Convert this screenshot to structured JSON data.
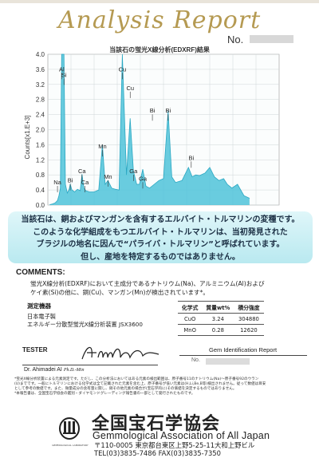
{
  "header": {
    "title": "Analysis Report",
    "no_label": "No."
  },
  "chart_data": {
    "type": "line",
    "title": "当該石の蛍光X線分析(EDXRF)結果",
    "ylabel": "Counts[x1.E+3]",
    "ylim": [
      0,
      4.0
    ],
    "xlim": [
      0,
      25
    ],
    "yticks": [
      "0.0",
      "0.4",
      "0.8",
      "1.2",
      "1.6",
      "2.0",
      "2.4",
      "2.8",
      "3.2",
      "3.6",
      "4.0"
    ],
    "grid": true,
    "fill_color": "#4fc3d9",
    "line_color": "#2aa7c2",
    "spectrum": [
      [
        0.2,
        0.01
      ],
      [
        0.5,
        0.03
      ],
      [
        0.8,
        0.06
      ],
      [
        1.04,
        0.12
      ],
      [
        1.2,
        0.25
      ],
      [
        1.35,
        0.45
      ],
      [
        1.49,
        4.0
      ],
      [
        1.62,
        4.0
      ],
      [
        1.74,
        4.0
      ],
      [
        1.9,
        0.55
      ],
      [
        2.1,
        0.32
      ],
      [
        2.3,
        0.42
      ],
      [
        2.42,
        0.55
      ],
      [
        2.6,
        0.4
      ],
      [
        2.9,
        0.35
      ],
      [
        3.2,
        0.42
      ],
      [
        3.5,
        0.38
      ],
      [
        3.69,
        0.82
      ],
      [
        3.9,
        0.45
      ],
      [
        4.1,
        0.38
      ],
      [
        4.5,
        0.35
      ],
      [
        5.0,
        0.35
      ],
      [
        5.5,
        0.4
      ],
      [
        5.9,
        1.6
      ],
      [
        6.2,
        0.55
      ],
      [
        6.5,
        0.65
      ],
      [
        6.9,
        0.45
      ],
      [
        7.3,
        0.42
      ],
      [
        7.7,
        0.4
      ],
      [
        8.05,
        4.0
      ],
      [
        8.5,
        0.8
      ],
      [
        8.9,
        2.3
      ],
      [
        9.25,
        0.9
      ],
      [
        9.6,
        0.55
      ],
      [
        9.9,
        0.55
      ],
      [
        10.26,
        0.95
      ],
      [
        10.6,
        0.5
      ],
      [
        11.0,
        0.45
      ],
      [
        11.5,
        0.55
      ],
      [
        12.0,
        0.65
      ],
      [
        12.5,
        0.7
      ],
      [
        13.0,
        2.5
      ],
      [
        13.4,
        0.75
      ],
      [
        13.8,
        0.6
      ],
      [
        14.5,
        0.65
      ],
      [
        15.2,
        1.0
      ],
      [
        15.6,
        0.75
      ],
      [
        16.0,
        0.8
      ],
      [
        16.4,
        0.78
      ],
      [
        17.0,
        0.85
      ],
      [
        17.5,
        1.0
      ],
      [
        18.0,
        0.75
      ],
      [
        18.5,
        0.65
      ],
      [
        19.0,
        0.7
      ],
      [
        19.4,
        0.55
      ],
      [
        19.9,
        0.45
      ],
      [
        20.5,
        0.55
      ],
      [
        21.2,
        0.25
      ],
      [
        21.8,
        0.18
      ]
    ],
    "peak_labels": [
      {
        "label": "Al",
        "x": 1.49,
        "y": 3.55
      },
      {
        "label": "Si",
        "x": 1.74,
        "y": 3.4
      },
      {
        "label": "Cu",
        "x": 8.05,
        "y": 3.55
      },
      {
        "label": "Cu",
        "x": 8.9,
        "y": 3.05
      },
      {
        "label": "Bi",
        "x": 11.3,
        "y": 2.45
      },
      {
        "label": "Bi",
        "x": 13.0,
        "y": 2.45
      },
      {
        "label": "Mn",
        "x": 5.9,
        "y": 1.5
      },
      {
        "label": "Mn",
        "x": 6.5,
        "y": 0.7
      },
      {
        "label": "Ga",
        "x": 9.25,
        "y": 0.85
      },
      {
        "label": "Ga",
        "x": 10.26,
        "y": 0.65
      },
      {
        "label": "Ca",
        "x": 3.69,
        "y": 0.85
      },
      {
        "label": "Ca",
        "x": 4.01,
        "y": 0.55
      },
      {
        "label": "Bi",
        "x": 15.5,
        "y": 1.2
      },
      {
        "label": "Na",
        "x": 1.04,
        "y": 0.55
      },
      {
        "label": "Bi",
        "x": 2.42,
        "y": 0.6
      }
    ]
  },
  "banner": {
    "line1": "当該石は、銅およびマンガンを含有するエルバイト・トルマリンの変種です。",
    "line2": "このような化学組成をもつエルバイト・トルマリンは、当初発見された",
    "line3": "ブラジルの地名に因んで“パライバ・トルマリン”と呼ばれています。",
    "line4": "但し、産地を特定するものではありません。"
  },
  "comments": {
    "heading": "COMMENTS:",
    "line1": "蛍光X線分析(EDXRF)において主成分であるナトリウム(Na)、アルミニウム(Al)および",
    "line2": "ケイ素(Si)の他に、銅(Cu)、マンガン(Mn)が検出されています*。"
  },
  "conditions": {
    "heading": "測定機器",
    "line1": "日本電子製",
    "line2": "エネルギー分散型蛍光X線分析装置  JSX3600"
  },
  "element_table": {
    "headers": [
      "化学式",
      "質量wt%",
      "積分強度"
    ],
    "rows": [
      [
        "CuO",
        "3.24",
        "304880"
      ],
      [
        "MnO",
        "0.28",
        "12620"
      ]
    ]
  },
  "tester": {
    "label": "TESTER",
    "signer_name": "Dr. Ahimadei AI",
    "signer_title": "Ph.D.-Min"
  },
  "gir": {
    "label": "Gem Identification Report",
    "no_label": "No."
  },
  "notes": {
    "line1": "*蛍光X線分析装置による元素測定です。ただし、この分析法においてはある元素の検出範囲は、原子番号11のナトリウム(Na)〜原子番号92のウラン",
    "line2": "(U)までです。一般にトルマリンにおける化学式は全て記載された元素を含む上、原子番号が低い元素は(H,Li,Be,B等)検出されません。従って数値は目安",
    "line3": "として参考の数値です。また、微量成分の含有量に関し、銅その他元素の場合が(宝石学的に)その価値を決定するものではありません。",
    "line4": "*本報告書は、全国宝石学協会の鑑別・ダイヤモンドグレーディング報告書の一部として発行されたものです。"
  },
  "association": {
    "name_jp": "全国宝石学協会",
    "name_en": "Gemmological Association of All Japan",
    "address": "〒110-0005  東京都台東区上野5-25-11大和上野ビル",
    "tel_fax": "TEL(03)3835-7486  FAX(03)3835-7350",
    "logo_text": "GEMMOLOGICAL LABORATORY"
  }
}
